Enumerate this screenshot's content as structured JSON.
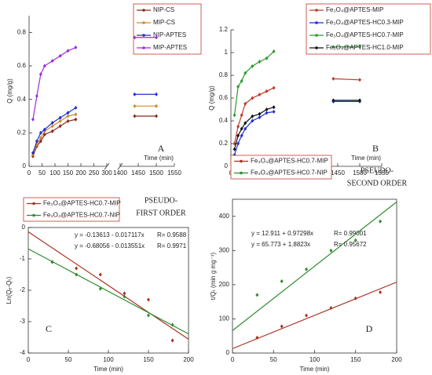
{
  "chart_data": [
    {
      "type": "line",
      "ylabel": "Q (mg/g)",
      "xlabel": "Time (min)",
      "annotation": "A",
      "xlim": [
        0,
        1550
      ],
      "xbreak": [
        300,
        1400
      ],
      "xticks": [
        0,
        50,
        100,
        150,
        200,
        250,
        300,
        1400,
        1450,
        1500,
        1550
      ],
      "ylim": [
        0,
        0.9
      ],
      "yticks": [
        0,
        0.2,
        0.4,
        0.6,
        0.8
      ],
      "x": [
        15,
        30,
        45,
        60,
        90,
        120,
        150,
        180,
        1440,
        1500
      ],
      "series": [
        {
          "name": "NIP-CS",
          "color": "#8b2a1a",
          "values": [
            0.06,
            0.12,
            0.15,
            0.19,
            0.21,
            0.24,
            0.27,
            0.28,
            0.3,
            0.3
          ]
        },
        {
          "name": "MIP-CS",
          "color": "#d08a2a",
          "values": [
            0.07,
            0.13,
            0.17,
            0.21,
            0.24,
            0.27,
            0.3,
            0.31,
            0.36,
            0.36
          ]
        },
        {
          "name": "NIP-APTES",
          "color": "#1f2fd0",
          "values": [
            0.08,
            0.15,
            0.2,
            0.22,
            0.26,
            0.29,
            0.32,
            0.35,
            0.43,
            0.43
          ]
        },
        {
          "name": "MIP-APTES",
          "color": "#9b30d9",
          "values": [
            0.28,
            0.42,
            0.55,
            0.6,
            0.63,
            0.66,
            0.69,
            0.71,
            0.77,
            0.77
          ]
        }
      ]
    },
    {
      "type": "line",
      "ylabel": "Q (mg/g)",
      "xlabel": "Time (min)",
      "annotation": "B",
      "xlim": [
        0,
        1550
      ],
      "xbreak": [
        300,
        1400
      ],
      "xticks": [
        0,
        50,
        100,
        150,
        200,
        250,
        300,
        1400,
        1450,
        1500,
        1550
      ],
      "ylim": [
        0,
        1.2
      ],
      "yticks": [
        0,
        0.2,
        0.4,
        0.6,
        0.8,
        1,
        1.2
      ],
      "x": [
        15,
        30,
        45,
        60,
        90,
        120,
        150,
        180,
        1440,
        1500
      ],
      "series": [
        {
          "name": "Fe₃O₄@APTES-MIP",
          "color": "#c0392b",
          "values": [
            0.2,
            0.35,
            0.45,
            0.55,
            0.6,
            0.63,
            0.66,
            0.69,
            0.77,
            0.76
          ]
        },
        {
          "name": "Fe₃O₄@APTES-HC0.3-MIP",
          "color": "#1f2fd0",
          "values": [
            0.1,
            0.2,
            0.27,
            0.33,
            0.4,
            0.43,
            0.47,
            0.48,
            0.57,
            0.57
          ]
        },
        {
          "name": "Fe₃O₄@APTES-HC0.7-MIP",
          "color": "#2e9a2e",
          "values": [
            0.45,
            0.7,
            0.75,
            0.82,
            0.88,
            0.92,
            0.95,
            1.01,
            1.05,
            1.05
          ]
        },
        {
          "name": "Fe₃O₄@APTES-HC1.0-MIP",
          "color": "#111111",
          "values": [
            0.15,
            0.27,
            0.33,
            0.38,
            0.44,
            0.46,
            0.5,
            0.52,
            0.58,
            0.58
          ]
        }
      ]
    },
    {
      "type": "scatter",
      "ylabel": "Ln(Qₑ-Qₜ)",
      "xlabel": "Time (min)",
      "annotation": "C",
      "title_lines": [
        "PSEUDO-",
        "FIRST ORDER"
      ],
      "xlim": [
        0,
        200
      ],
      "xticks": [
        0,
        50,
        100,
        150,
        200
      ],
      "ylim": [
        -4,
        0
      ],
      "yticks": [
        -4,
        -3,
        -2,
        -1,
        0
      ],
      "x": [
        30,
        60,
        90,
        120,
        150,
        180
      ],
      "series": [
        {
          "name": "Fe₃O₄@APTES-HC0.7-MIP",
          "color": "#a83222",
          "values": [
            -1.1,
            -1.3,
            -1.5,
            -2.1,
            -2.3,
            -3.6
          ],
          "fit": {
            "intercept": -0.13613,
            "slope": -0.017117
          },
          "equation": "y = -0.13613 - 0.017117x",
          "r_label": "R= 0.9588"
        },
        {
          "name": "Fe₃O₄@APTES-HC0.7-NIP",
          "color": "#2e8b2e",
          "values": [
            -1.1,
            -1.5,
            -1.95,
            -2.2,
            -2.8,
            -3.1
          ],
          "fit": {
            "intercept": -0.68056,
            "slope": -0.013551
          },
          "equation": "y = -0.68056 - 0.013551x",
          "r_label": "R= 0.9971"
        }
      ]
    },
    {
      "type": "scatter",
      "ylabel": "t/Qₜ (min g mg⁻¹)",
      "xlabel": "Time (min)",
      "annotation": "D",
      "title_lines": [
        "PSEUDO-",
        "SECOND ORDER"
      ],
      "xlim": [
        0,
        200
      ],
      "xticks": [
        0,
        50,
        100,
        150,
        200
      ],
      "ylim": [
        0,
        450
      ],
      "yticks": [
        0,
        100,
        200,
        300,
        400
      ],
      "x": [
        30,
        60,
        90,
        120,
        150,
        180
      ],
      "series": [
        {
          "name": "Fe₃O₄@APTES-HC0.7-MIP",
          "color": "#a83222",
          "values": [
            45,
            78,
            110,
            132,
            160,
            178
          ],
          "fit": {
            "intercept": 12.911,
            "slope": 0.97298
          },
          "equation": "y = 12.911 + 0.97298x",
          "r_label": "R= 0.99001"
        },
        {
          "name": "Fe₃O₄@APTES-HC0.7-NIP",
          "color": "#2e8b2e",
          "values": [
            170,
            210,
            245,
            300,
            330,
            385
          ],
          "fit": {
            "intercept": 65.773,
            "slope": 1.8823
          },
          "equation": "y = 65.773 + 1.8823x",
          "r_label": "R= 0.95672"
        }
      ]
    }
  ]
}
